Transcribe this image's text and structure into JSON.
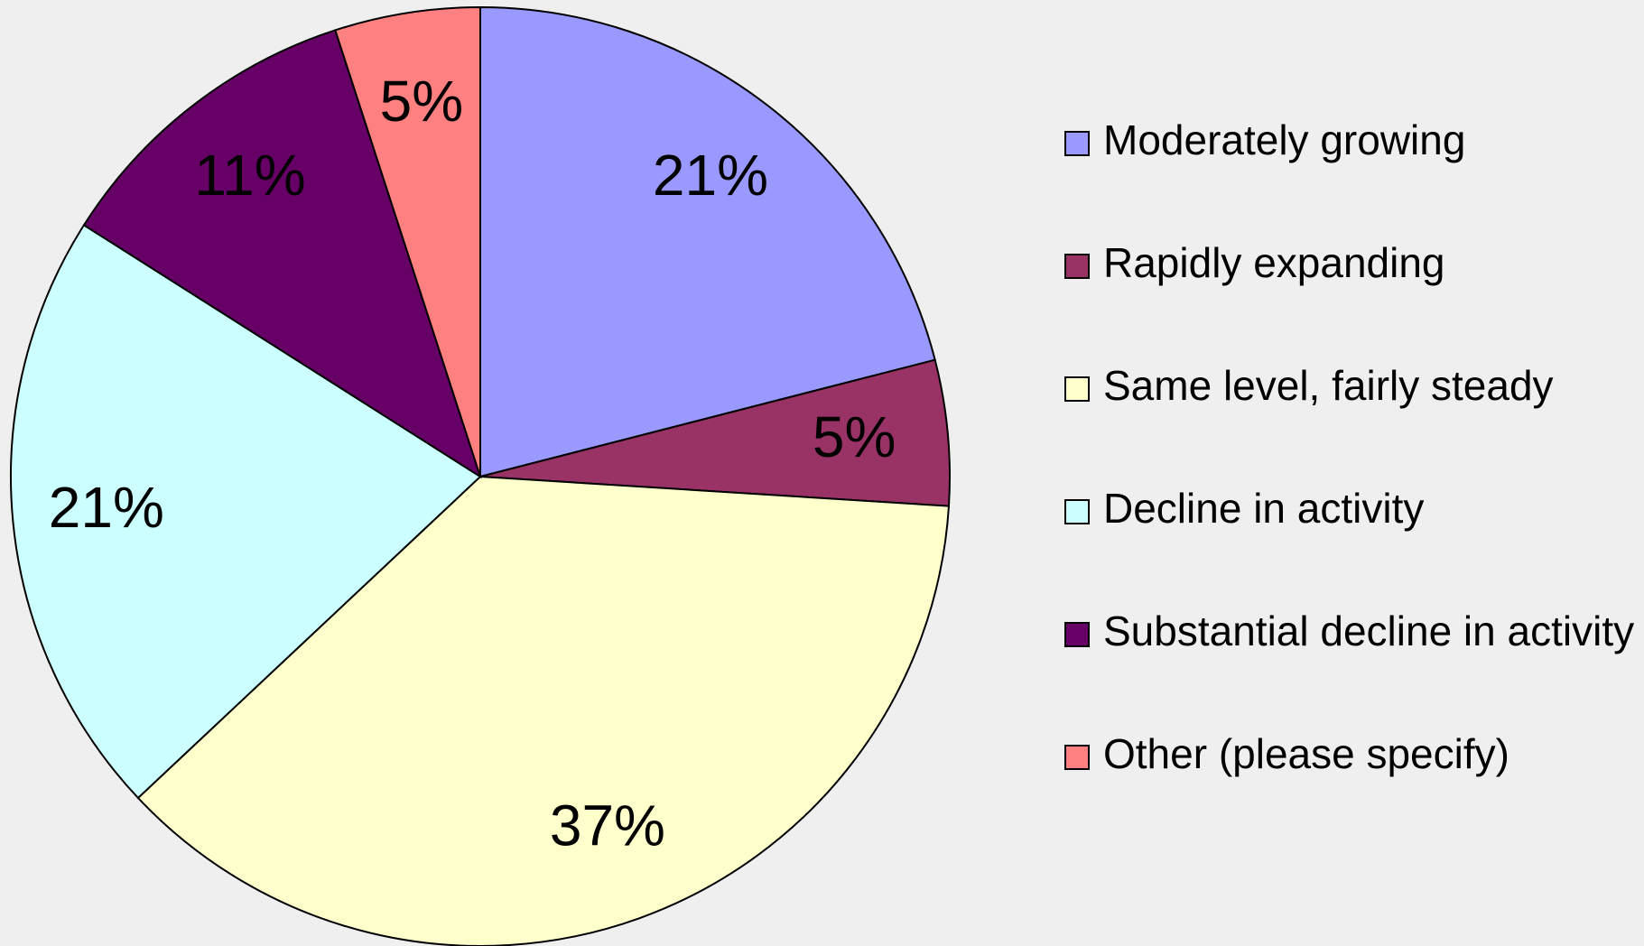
{
  "chart_data": {
    "type": "pie",
    "categories": [
      "Moderately growing",
      "Rapidly expanding",
      "Same level, fairly steady",
      "Decline in activity",
      "Substantial decline in activity",
      "Other (please specify)"
    ],
    "values": [
      21,
      5,
      37,
      21,
      11,
      5
    ],
    "value_labels": [
      "21%",
      "5%",
      "37%",
      "21%",
      "11%",
      "5%"
    ],
    "colors": [
      "#9999ff",
      "#993366",
      "#ffffcc",
      "#ccffff",
      "#660066",
      "#ff8080"
    ],
    "legend": "right"
  }
}
